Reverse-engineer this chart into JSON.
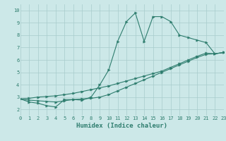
{
  "xlabel": "Humidex (Indice chaleur)",
  "bg_color": "#cce8e8",
  "line_color": "#2e7d6e",
  "grid_color": "#a8cccc",
  "xlim": [
    0,
    23
  ],
  "ylim": [
    1.5,
    10.5
  ],
  "xticks": [
    0,
    1,
    2,
    3,
    4,
    5,
    6,
    7,
    8,
    9,
    10,
    11,
    12,
    13,
    14,
    15,
    16,
    17,
    18,
    19,
    20,
    21,
    22,
    23
  ],
  "yticks": [
    2,
    3,
    4,
    5,
    6,
    7,
    8,
    9,
    10
  ],
  "line1_x": [
    0,
    1,
    2,
    3,
    4,
    5,
    6,
    7,
    8,
    9,
    10,
    11,
    12,
    13,
    14,
    15,
    16,
    17,
    18,
    19,
    20,
    21,
    22,
    23
  ],
  "line1_y": [
    2.85,
    2.6,
    2.5,
    2.3,
    2.2,
    2.8,
    2.8,
    2.75,
    3.0,
    4.0,
    5.2,
    7.5,
    9.1,
    9.8,
    7.5,
    9.5,
    9.5,
    9.1,
    8.0,
    7.8,
    7.6,
    7.4,
    6.5,
    6.6
  ],
  "line2_x": [
    0,
    1,
    2,
    3,
    4,
    5,
    6,
    7,
    8,
    9,
    10,
    11,
    12,
    13,
    14,
    15,
    16,
    17,
    18,
    19,
    20,
    21,
    22,
    23
  ],
  "line2_y": [
    2.85,
    2.9,
    3.0,
    3.05,
    3.1,
    3.2,
    3.3,
    3.45,
    3.6,
    3.75,
    3.9,
    4.1,
    4.3,
    4.5,
    4.7,
    4.9,
    5.1,
    5.4,
    5.7,
    6.0,
    6.3,
    6.55,
    6.5,
    6.6
  ],
  "line3_x": [
    0,
    1,
    2,
    3,
    4,
    5,
    6,
    7,
    8,
    9,
    10,
    11,
    12,
    13,
    14,
    15,
    16,
    17,
    18,
    19,
    20,
    21,
    22,
    23
  ],
  "line3_y": [
    2.85,
    2.75,
    2.7,
    2.65,
    2.6,
    2.7,
    2.8,
    2.85,
    2.9,
    3.0,
    3.2,
    3.5,
    3.8,
    4.1,
    4.4,
    4.7,
    5.0,
    5.3,
    5.6,
    5.9,
    6.2,
    6.45,
    6.5,
    6.6
  ],
  "tick_fontsize": 5.0,
  "xlabel_fontsize": 6.5,
  "marker_size": 2.5,
  "line_width": 0.8
}
